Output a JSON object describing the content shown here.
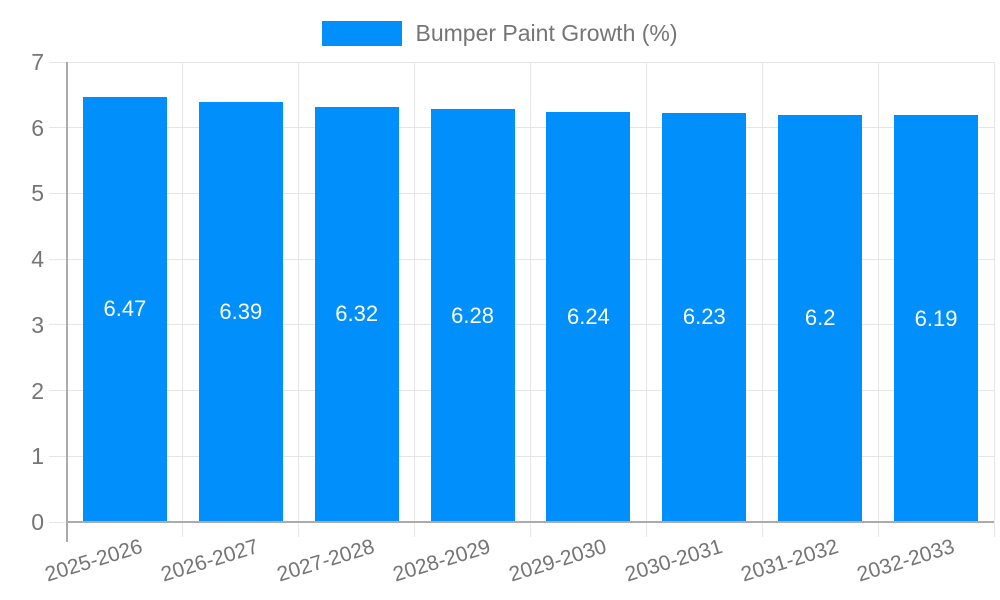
{
  "legend": {
    "label": "Bumper Paint Growth (%)"
  },
  "chart_data": {
    "type": "bar",
    "title": "Bumper Paint Growth (%)",
    "categories": [
      "2025-2026",
      "2026-2027",
      "2027-2028",
      "2028-2029",
      "2029-2030",
      "2030-2031",
      "2031-2032",
      "2032-2033"
    ],
    "values": [
      6.47,
      6.39,
      6.32,
      6.28,
      6.24,
      6.23,
      6.2,
      6.19
    ],
    "value_labels": [
      "6.47",
      "6.39",
      "6.32",
      "6.28",
      "6.24",
      "6.23",
      "6.2",
      "6.19"
    ],
    "xlabel": "",
    "ylabel": "",
    "ylim": [
      0,
      7
    ],
    "yticks": [
      0,
      1,
      2,
      3,
      4,
      5,
      6,
      7
    ],
    "grid": true,
    "legend_position": "top-center",
    "colors": {
      "bar": "#008FFB",
      "value_label": "#FFFFFF",
      "axis_text": "#757575",
      "gridline": "#E6E6E6",
      "axis_line": "#ABABAB",
      "background": "#FFFFFF"
    }
  }
}
